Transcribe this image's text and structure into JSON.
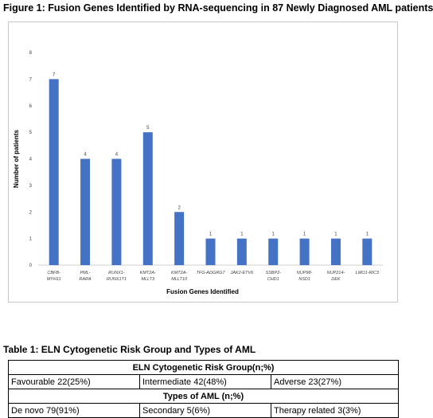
{
  "figure_title": "Figure 1: Fusion Genes Identified by RNA-sequencing in 87 Newly Diagnosed AML patients",
  "chart_data": {
    "type": "bar",
    "categories": [
      [
        "CBFB-",
        "MYH11"
      ],
      [
        "PML-",
        "RARA"
      ],
      [
        "RUNX1-",
        "RUNX1T1"
      ],
      [
        "KMT2A-",
        "MLLT3"
      ],
      [
        "KMT2A-",
        "MLLT10"
      ],
      [
        "TFG-ADGRG7"
      ],
      [
        "JAK2-ETV6"
      ],
      [
        "SSBP2-",
        "CHD1"
      ],
      [
        "NUP98-",
        "NSD1"
      ],
      [
        "NUP214-",
        "DEK"
      ],
      [
        "LMO1-RIC3"
      ]
    ],
    "values": [
      7,
      4,
      4,
      5,
      2,
      1,
      1,
      1,
      1,
      1,
      1
    ],
    "ylim": [
      0,
      8
    ],
    "yticks": [
      0,
      1,
      2,
      3,
      4,
      5,
      6,
      7,
      8
    ],
    "xlabel": "Fusion Genes Identified",
    "ylabel": "Number of patients",
    "bar_color": "#4472c4",
    "grid": false,
    "data_labels": true
  },
  "table_title": "Table 1: ELN Cytogenetic Risk Group and Types of AML",
  "table": {
    "header1": "ELN Cytogenetic Risk Group(n;%)",
    "row1": [
      "Favourable 22(25%)",
      "Intermediate 42(48%)",
      "Adverse 23(27%)"
    ],
    "header2": "Types of AML (n;%)",
    "row2": [
      "De novo 79(91%)",
      "Secondary 5(6%)",
      "Therapy related 3(3%)"
    ]
  }
}
